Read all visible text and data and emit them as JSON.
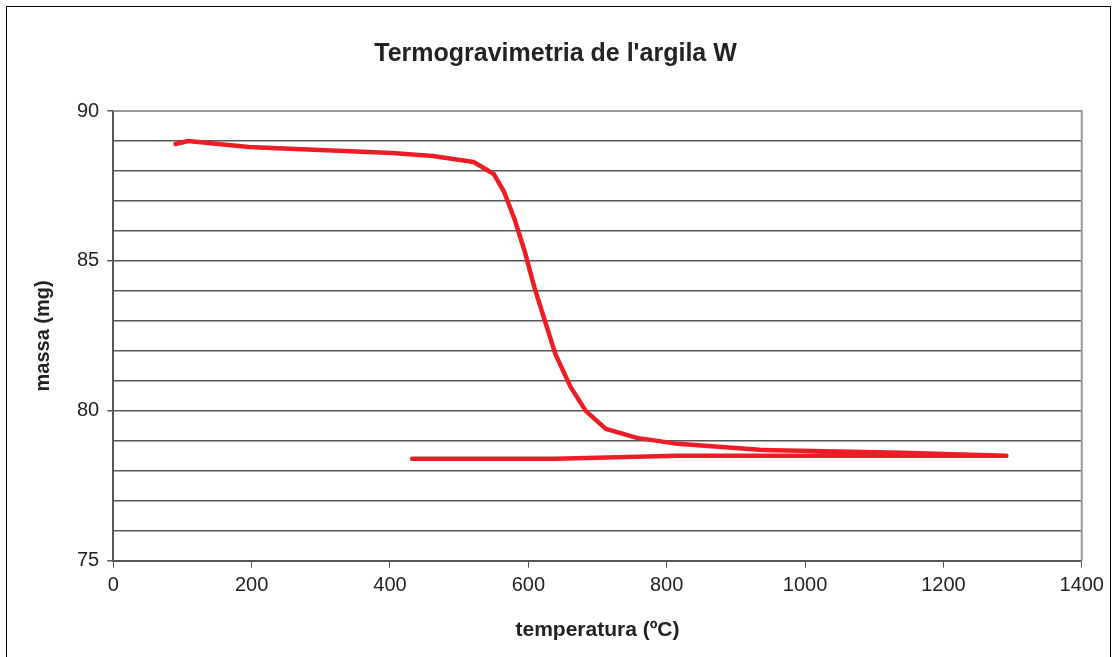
{
  "chart_data": {
    "type": "line",
    "title": "Termogravimetria de l'argila W",
    "xlabel": "temperatura (ºC)",
    "ylabel": "massa (mg)",
    "series": [
      {
        "color": "#ee1c25",
        "x": [
          90,
          108,
          196,
          403,
          462,
          521,
          550,
          565,
          580,
          595,
          609,
          624,
          639,
          661,
          683,
          712,
          757,
          816,
          934,
          1140,
          1291,
          1140,
          993,
          816,
          639,
          432
        ],
        "values": [
          88.9,
          89.0,
          88.8,
          88.6,
          88.5,
          88.3,
          87.9,
          87.3,
          86.4,
          85.3,
          84.1,
          83.0,
          81.9,
          80.8,
          80.0,
          79.4,
          79.1,
          78.9,
          78.7,
          78.6,
          78.5,
          78.5,
          78.5,
          78.5,
          78.4,
          78.4
        ]
      }
    ],
    "xlim": [
      0,
      1400
    ],
    "xticks": [
      0,
      200,
      400,
      600,
      800,
      1000,
      1200,
      1400
    ],
    "ylim": [
      75,
      90
    ],
    "yticks": [
      75,
      {
        "value": 76,
        "label": null
      },
      {
        "value": 77,
        "label": null
      },
      {
        "value": 78,
        "label": null
      },
      {
        "value": 79,
        "label": null
      },
      80,
      {
        "value": 81,
        "label": null
      },
      {
        "value": 82,
        "label": null
      },
      {
        "value": 83,
        "label": null
      },
      {
        "value": 84,
        "label": null
      },
      85,
      {
        "value": 86,
        "label": null
      },
      {
        "value": 87,
        "label": null
      },
      {
        "value": 88,
        "label": null
      },
      {
        "value": 89,
        "label": null
      },
      90
    ],
    "grid": "y",
    "legend": false,
    "marker": "none",
    "line_style": "solid"
  }
}
